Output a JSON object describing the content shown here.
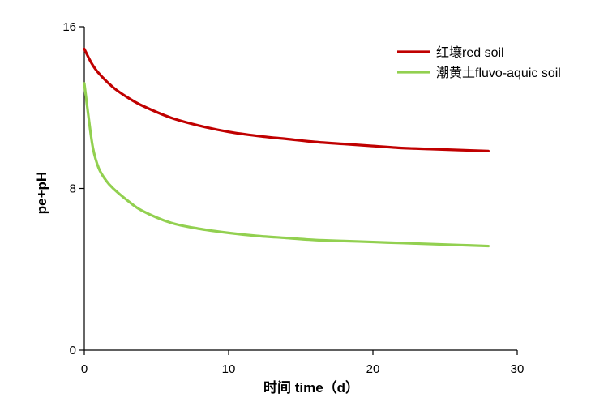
{
  "chart_data": {
    "type": "line",
    "title": "",
    "xlabel": "时间 time（d）",
    "ylabel": "pe+pH",
    "xlim": [
      0,
      30
    ],
    "ylim": [
      0,
      16
    ],
    "x_ticks": [
      0,
      10,
      20,
      30
    ],
    "y_ticks": [
      0,
      8,
      16
    ],
    "x_tick_labels": [
      "0",
      "10",
      "20",
      "30"
    ],
    "y_tick_labels": [
      "0",
      "8",
      "16"
    ],
    "grid": false,
    "legend_position": "top-right",
    "series": [
      {
        "name": "红壤red soil",
        "color": "#c00000",
        "x": [
          0,
          0.5,
          1,
          2,
          3,
          4,
          6,
          8,
          10,
          12,
          14,
          16,
          18,
          20,
          22,
          24,
          26,
          28
        ],
        "values": [
          14.9,
          14.2,
          13.7,
          13.0,
          12.5,
          12.1,
          11.5,
          11.1,
          10.8,
          10.6,
          10.45,
          10.3,
          10.2,
          10.1,
          10.0,
          9.95,
          9.9,
          9.85
        ]
      },
      {
        "name": "潮黄土fluvo-aquic soil",
        "color": "#92d050",
        "x": [
          0,
          0.3,
          0.6,
          1,
          1.5,
          2,
          3,
          4,
          6,
          8,
          10,
          12,
          14,
          16,
          18,
          20,
          22,
          24,
          26,
          28
        ],
        "values": [
          13.2,
          11.5,
          10.0,
          9.0,
          8.4,
          8.0,
          7.4,
          6.9,
          6.3,
          6.0,
          5.8,
          5.65,
          5.55,
          5.45,
          5.4,
          5.35,
          5.3,
          5.25,
          5.2,
          5.15
        ]
      }
    ]
  }
}
